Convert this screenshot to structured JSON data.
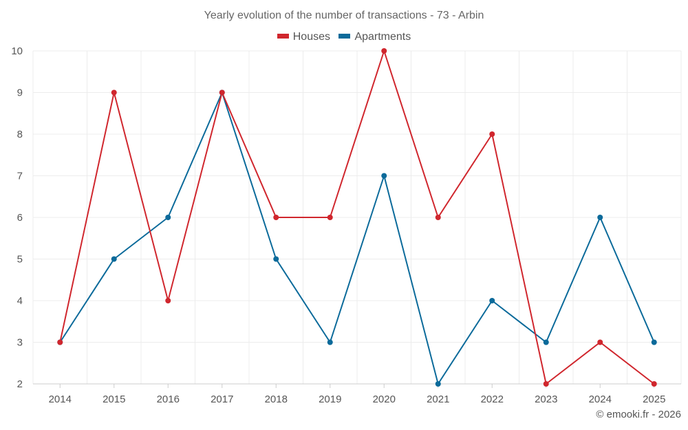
{
  "chart_data": {
    "type": "line",
    "title": "Yearly evolution of the number of transactions - 73 - Arbin",
    "x": [
      "2014",
      "2015",
      "2016",
      "2017",
      "2018",
      "2019",
      "2020",
      "2021",
      "2022",
      "2023",
      "2024",
      "2025"
    ],
    "series": [
      {
        "name": "Houses",
        "color": "#d0262d",
        "values": [
          3,
          9,
          4,
          9,
          6,
          6,
          10,
          6,
          8,
          2,
          3,
          2
        ]
      },
      {
        "name": "Apartments",
        "color": "#0b6a9a",
        "values": [
          3,
          5,
          6,
          9,
          5,
          3,
          7,
          2,
          4,
          3,
          6,
          3
        ]
      }
    ],
    "y_ticks": [
      "2",
      "3",
      "4",
      "5",
      "6",
      "7",
      "8",
      "9",
      "10"
    ],
    "ylim": [
      2,
      10
    ],
    "grid": true,
    "legend_position": "top-center"
  },
  "credit": "© emooki.fr - 2026"
}
